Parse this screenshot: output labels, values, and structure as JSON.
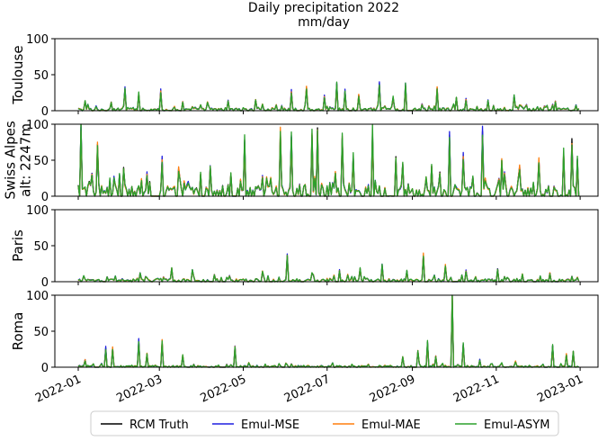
{
  "chart_data": {
    "type": "line",
    "title": "Daily precipitation 2022",
    "subtitle": "mm/day",
    "x_tick_labels": [
      "2022-01",
      "2022-03",
      "2022-05",
      "2022-07",
      "2022-09",
      "2022-11",
      "2023-01"
    ],
    "x_ticks": [
      "2022-01-01",
      "2022-03-01",
      "2022-05-01",
      "2022-07-01",
      "2022-09-01",
      "2022-11-01",
      "2023-01-01"
    ],
    "x_range": [
      "2021-12-15",
      "2023-01-14"
    ],
    "grid": false,
    "legend_position": "bottom",
    "legend": [
      "RCM Truth",
      "Emul-MSE",
      "Emul-MAE",
      "Emul-ASYM"
    ],
    "colors": {
      "RCM Truth": "#000000",
      "Emul-MSE": "#1f1fe0",
      "Emul-MAE": "#ff7f0e",
      "Emul-ASYM": "#2ca02c"
    },
    "panels": [
      {
        "name": "Toulouse",
        "ylabel_lines": [
          "Toulouse"
        ],
        "ylim": [
          0,
          100
        ],
        "yticks": [
          0,
          50,
          100
        ],
        "base": 2,
        "noise": 5,
        "peaks": [
          {
            "date": "2022-01-06",
            "value": 13
          },
          {
            "date": "2022-01-25",
            "value": 12
          },
          {
            "date": "2022-02-04",
            "value": 30
          },
          {
            "date": "2022-02-14",
            "value": 23
          },
          {
            "date": "2022-03-02",
            "value": 27
          },
          {
            "date": "2022-03-18",
            "value": 12
          },
          {
            "date": "2022-04-05",
            "value": 12
          },
          {
            "date": "2022-04-20",
            "value": 14
          },
          {
            "date": "2022-05-10",
            "value": 15
          },
          {
            "date": "2022-06-05",
            "value": 26
          },
          {
            "date": "2022-06-16",
            "value": 33
          },
          {
            "date": "2022-06-29",
            "value": 20
          },
          {
            "date": "2022-07-08",
            "value": 37
          },
          {
            "date": "2022-07-14",
            "value": 27
          },
          {
            "date": "2022-07-24",
            "value": 22
          },
          {
            "date": "2022-08-08",
            "value": 38
          },
          {
            "date": "2022-08-18",
            "value": 18
          },
          {
            "date": "2022-08-27",
            "value": 35
          },
          {
            "date": "2022-09-19",
            "value": 32
          },
          {
            "date": "2022-10-03",
            "value": 18
          },
          {
            "date": "2022-10-10",
            "value": 16
          },
          {
            "date": "2022-10-26",
            "value": 14
          },
          {
            "date": "2022-11-14",
            "value": 20
          },
          {
            "date": "2022-12-14",
            "value": 13
          },
          {
            "date": "2022-12-29",
            "value": 8
          }
        ]
      },
      {
        "name": "Swiss Alpes",
        "ylabel_lines": [
          "Swiss Alpes",
          "alt: 2247m"
        ],
        "ylim": [
          0,
          100
        ],
        "yticks": [
          0,
          50,
          100
        ],
        "base": 10,
        "noise": 16,
        "peaks": [
          {
            "date": "2022-01-03",
            "value": 100
          },
          {
            "date": "2022-01-15",
            "value": 72
          },
          {
            "date": "2022-02-03",
            "value": 40
          },
          {
            "date": "2022-02-20",
            "value": 30
          },
          {
            "date": "2022-03-03",
            "value": 50
          },
          {
            "date": "2022-03-15",
            "value": 37
          },
          {
            "date": "2022-04-07",
            "value": 40
          },
          {
            "date": "2022-04-22",
            "value": 30
          },
          {
            "date": "2022-05-02",
            "value": 78
          },
          {
            "date": "2022-05-15",
            "value": 27
          },
          {
            "date": "2022-05-28",
            "value": 88
          },
          {
            "date": "2022-06-05",
            "value": 82
          },
          {
            "date": "2022-06-20",
            "value": 85
          },
          {
            "date": "2022-06-24",
            "value": 95
          },
          {
            "date": "2022-07-12",
            "value": 80
          },
          {
            "date": "2022-07-20",
            "value": 55
          },
          {
            "date": "2022-08-03",
            "value": 90
          },
          {
            "date": "2022-08-20",
            "value": 55
          },
          {
            "date": "2022-08-25",
            "value": 45
          },
          {
            "date": "2022-09-15",
            "value": 42
          },
          {
            "date": "2022-09-28",
            "value": 85
          },
          {
            "date": "2022-10-08",
            "value": 55
          },
          {
            "date": "2022-10-22",
            "value": 90
          },
          {
            "date": "2022-11-05",
            "value": 50
          },
          {
            "date": "2022-11-18",
            "value": 40
          },
          {
            "date": "2022-12-02",
            "value": 50
          },
          {
            "date": "2022-12-20",
            "value": 60
          },
          {
            "date": "2022-12-26",
            "value": 80
          },
          {
            "date": "2022-12-30",
            "value": 52
          }
        ]
      },
      {
        "name": "Paris",
        "ylabel_lines": [
          "Paris"
        ],
        "ylim": [
          0,
          100
        ],
        "yticks": [
          0,
          50,
          100
        ],
        "base": 2,
        "noise": 5,
        "peaks": [
          {
            "date": "2022-01-05",
            "value": 8
          },
          {
            "date": "2022-02-15",
            "value": 12
          },
          {
            "date": "2022-03-10",
            "value": 18
          },
          {
            "date": "2022-03-25",
            "value": 16
          },
          {
            "date": "2022-04-10",
            "value": 10
          },
          {
            "date": "2022-05-15",
            "value": 14
          },
          {
            "date": "2022-06-02",
            "value": 35
          },
          {
            "date": "2022-06-20",
            "value": 12
          },
          {
            "date": "2022-07-10",
            "value": 15
          },
          {
            "date": "2022-07-25",
            "value": 18
          },
          {
            "date": "2022-08-10",
            "value": 22
          },
          {
            "date": "2022-08-28",
            "value": 15
          },
          {
            "date": "2022-09-09",
            "value": 37
          },
          {
            "date": "2022-09-25",
            "value": 22
          },
          {
            "date": "2022-10-10",
            "value": 15
          },
          {
            "date": "2022-11-02",
            "value": 18
          },
          {
            "date": "2022-11-20",
            "value": 10
          },
          {
            "date": "2022-12-10",
            "value": 12
          },
          {
            "date": "2022-12-30",
            "value": 6
          }
        ]
      },
      {
        "name": "Roma",
        "ylabel_lines": [
          "Roma"
        ],
        "ylim": [
          0,
          100
        ],
        "yticks": [
          0,
          50,
          100
        ],
        "base": 1,
        "noise": 3,
        "peaks": [
          {
            "date": "2022-01-06",
            "value": 10
          },
          {
            "date": "2022-01-21",
            "value": 26
          },
          {
            "date": "2022-01-26",
            "value": 26
          },
          {
            "date": "2022-02-14",
            "value": 36
          },
          {
            "date": "2022-02-20",
            "value": 18
          },
          {
            "date": "2022-03-03",
            "value": 35
          },
          {
            "date": "2022-03-18",
            "value": 16
          },
          {
            "date": "2022-04-25",
            "value": 27
          },
          {
            "date": "2022-05-05",
            "value": 6
          },
          {
            "date": "2022-07-05",
            "value": 6
          },
          {
            "date": "2022-08-25",
            "value": 14
          },
          {
            "date": "2022-09-05",
            "value": 22
          },
          {
            "date": "2022-09-12",
            "value": 35
          },
          {
            "date": "2022-09-18",
            "value": 15
          },
          {
            "date": "2022-09-30",
            "value": 100
          },
          {
            "date": "2022-10-08",
            "value": 32
          },
          {
            "date": "2022-10-20",
            "value": 10
          },
          {
            "date": "2022-11-15",
            "value": 8
          },
          {
            "date": "2022-12-12",
            "value": 30
          },
          {
            "date": "2022-12-22",
            "value": 18
          },
          {
            "date": "2022-12-27",
            "value": 20
          }
        ]
      }
    ]
  }
}
